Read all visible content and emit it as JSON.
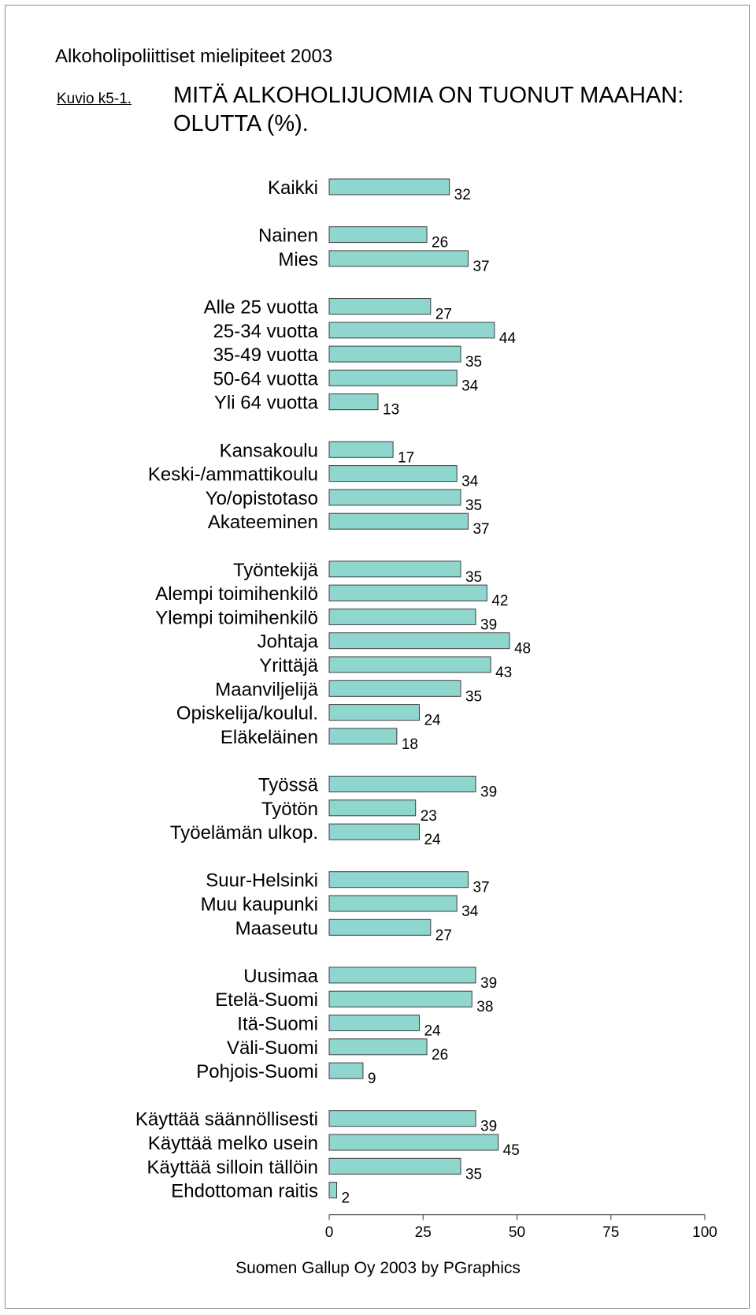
{
  "header": "Alkoholipoliittiset mielipiteet 2003",
  "figure_label": "Kuvio k5-1.",
  "footer": "Suomen Gallup Oy 2003 by PGraphics",
  "colors": {
    "bar": "#8fd6ce",
    "bar_border": "#3d3d3d"
  },
  "chart_data": {
    "type": "bar",
    "orientation": "horizontal",
    "title": "MITÄ ALKOHOLIJUOMIA ON TUONUT MAAHAN: OLUTTA (%).",
    "xlim": [
      0,
      100
    ],
    "xticks": [
      0,
      25,
      50,
      75,
      100
    ],
    "grid": false,
    "groups": [
      {
        "items": [
          {
            "label": "Kaikki",
            "value": 32
          }
        ]
      },
      {
        "items": [
          {
            "label": "Nainen",
            "value": 26
          },
          {
            "label": "Mies",
            "value": 37
          }
        ]
      },
      {
        "items": [
          {
            "label": "Alle 25 vuotta",
            "value": 27
          },
          {
            "label": "25-34 vuotta",
            "value": 44
          },
          {
            "label": "35-49 vuotta",
            "value": 35
          },
          {
            "label": "50-64 vuotta",
            "value": 34
          },
          {
            "label": "Yli 64 vuotta",
            "value": 13
          }
        ]
      },
      {
        "items": [
          {
            "label": "Kansakoulu",
            "value": 17
          },
          {
            "label": "Keski-/ammattikoulu",
            "value": 34
          },
          {
            "label": "Yo/opistotaso",
            "value": 35
          },
          {
            "label": "Akateeminen",
            "value": 37
          }
        ]
      },
      {
        "items": [
          {
            "label": "Työntekijä",
            "value": 35
          },
          {
            "label": "Alempi toimihenkilö",
            "value": 42
          },
          {
            "label": "Ylempi toimihenkilö",
            "value": 39
          },
          {
            "label": "Johtaja",
            "value": 48
          },
          {
            "label": "Yrittäjä",
            "value": 43
          },
          {
            "label": "Maanviljelijä",
            "value": 35
          },
          {
            "label": "Opiskelija/koulul.",
            "value": 24
          },
          {
            "label": "Eläkeläinen",
            "value": 18
          }
        ]
      },
      {
        "items": [
          {
            "label": "Työssä",
            "value": 39
          },
          {
            "label": "Työtön",
            "value": 23
          },
          {
            "label": "Työelämän ulkop.",
            "value": 24
          }
        ]
      },
      {
        "items": [
          {
            "label": "Suur-Helsinki",
            "value": 37
          },
          {
            "label": "Muu kaupunki",
            "value": 34
          },
          {
            "label": "Maaseutu",
            "value": 27
          }
        ]
      },
      {
        "items": [
          {
            "label": "Uusimaa",
            "value": 39
          },
          {
            "label": "Etelä-Suomi",
            "value": 38
          },
          {
            "label": "Itä-Suomi",
            "value": 24
          },
          {
            "label": "Väli-Suomi",
            "value": 26
          },
          {
            "label": "Pohjois-Suomi",
            "value": 9
          }
        ]
      },
      {
        "items": [
          {
            "label": "Käyttää säännöllisesti",
            "value": 39
          },
          {
            "label": "Käyttää melko usein",
            "value": 45
          },
          {
            "label": "Käyttää silloin tällöin",
            "value": 35
          },
          {
            "label": "Ehdottoman raitis",
            "value": 2
          }
        ]
      }
    ]
  }
}
